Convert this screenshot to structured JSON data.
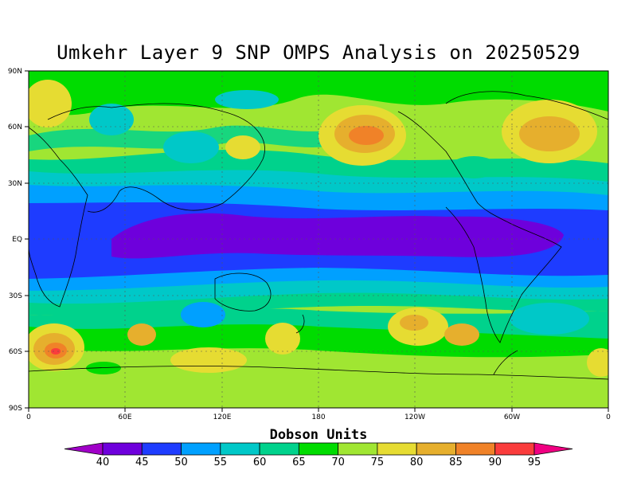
{
  "title": "Umkehr Layer 9 SNP OMPS Analysis on 20250529",
  "lat_labels": [
    "90N",
    "60N",
    "30N",
    "EQ",
    "30S",
    "60S",
    "90S"
  ],
  "lon_labels": [
    "0",
    "60E",
    "120E",
    "180",
    "120W",
    "60W",
    "0"
  ],
  "colorbar": {
    "title": "Dobson Units",
    "levels": [
      "40",
      "45",
      "50",
      "55",
      "60",
      "65",
      "70",
      "75",
      "80",
      "85",
      "90",
      "95"
    ],
    "colors": [
      "#a000c8",
      "#6e00dc",
      "#1e3cff",
      "#00a0ff",
      "#00c8c8",
      "#00d28c",
      "#00dc00",
      "#a0e632",
      "#e6dc32",
      "#e6af2d",
      "#f08228",
      "#fa3c3c",
      "#f00082"
    ]
  },
  "palette": {
    "c40": "#a000c8",
    "c45": "#6e00dc",
    "c50": "#1e3cff",
    "c55": "#00a0ff",
    "c60": "#00c8c8",
    "c65": "#00d28c",
    "c70": "#00dc00",
    "c75": "#a0e632",
    "c80": "#e6dc32",
    "c85": "#e6af2d",
    "c90": "#f08228",
    "c95": "#fa3c3c"
  }
}
